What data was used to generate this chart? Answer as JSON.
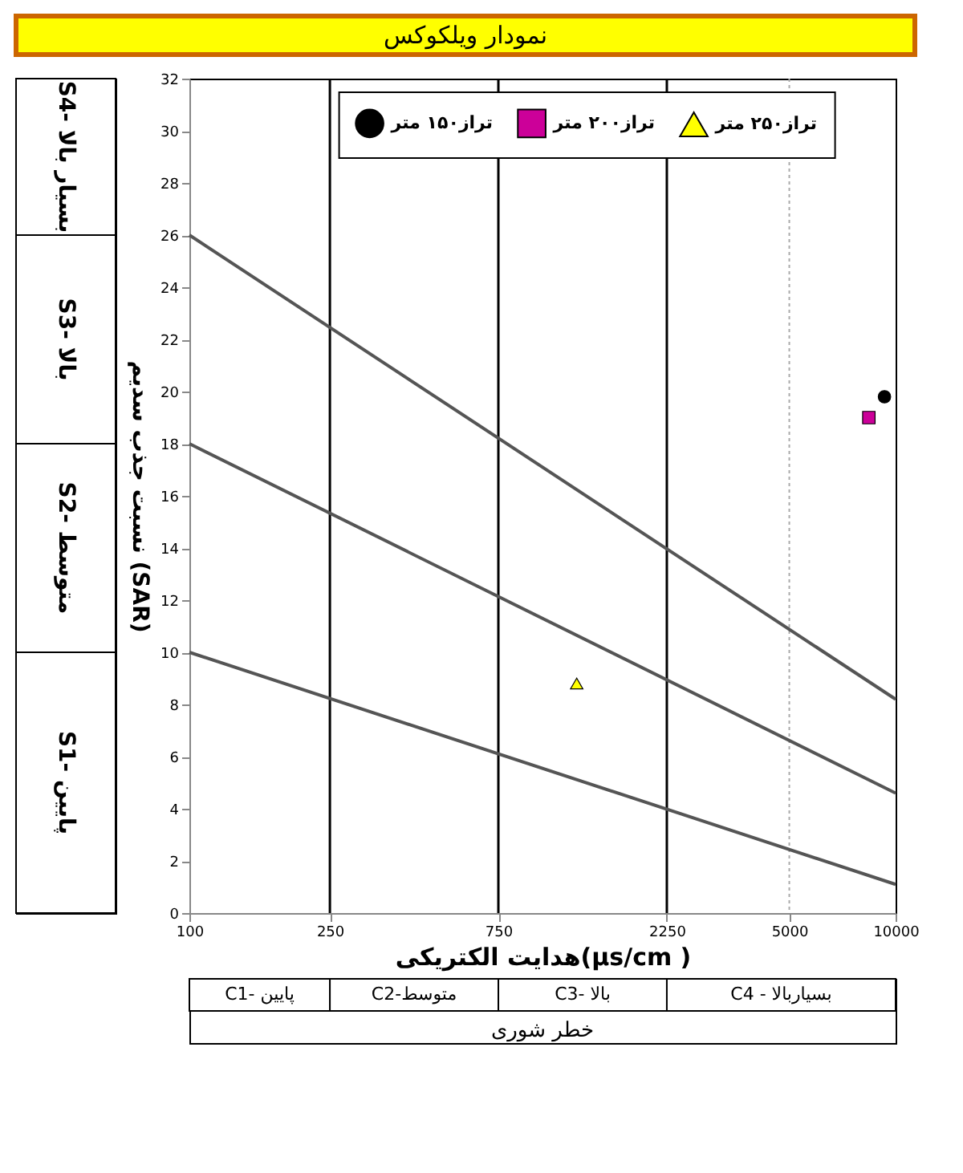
{
  "chart_data": {
    "type": "scatter",
    "title": "نمودار ویلکوکس",
    "xlabel": "هدایت الکتریکی(µs/cm )",
    "ylabel": "نسبت جذب سدیم (SAR)",
    "log": "x",
    "xlim": [
      100,
      10000
    ],
    "xticks": [
      100,
      250,
      750,
      2250,
      5000,
      10000
    ],
    "ylim": [
      0,
      32
    ],
    "yticks": [
      0,
      2,
      4,
      6,
      8,
      10,
      12,
      14,
      16,
      18,
      20,
      22,
      24,
      26,
      28,
      30,
      32
    ],
    "grid": false,
    "legend": "top right",
    "series": [
      {
        "type": "line",
        "color": "#555555",
        "x": [
          100,
          10000
        ],
        "values": [
          26,
          8.2
        ]
      },
      {
        "type": "line",
        "color": "#555555",
        "x": [
          100,
          10000
        ],
        "values": [
          18,
          4.6
        ]
      },
      {
        "type": "line",
        "color": "#555555",
        "x": [
          100,
          10000
        ],
        "values": [
          10,
          1.1
        ]
      },
      {
        "type": "scatter",
        "name": "تراز۱۵۰ متر",
        "color": "#000000",
        "marker": "circle",
        "x": [
          9300
        ],
        "values": [
          19.8
        ]
      },
      {
        "type": "scatter",
        "name": "تراز۲۰۰ متر",
        "color": "#cc0099",
        "marker": "square",
        "x": [
          8400
        ],
        "values": [
          19.0
        ]
      },
      {
        "type": "scatter",
        "name": "تراز۲۵۰ متر",
        "color": "#ffff00",
        "marker": "triangle",
        "x": [
          1250
        ],
        "values": [
          8.8
        ]
      }
    ],
    "ref_lines": [
      {
        "axis": "x",
        "value": 250,
        "color": "#000000",
        "line_style": "solid"
      },
      {
        "axis": "x",
        "value": 750,
        "color": "#000000",
        "line_style": "solid"
      },
      {
        "axis": "x",
        "value": 2250,
        "color": "#000000",
        "line_style": "solid"
      },
      {
        "axis": "x",
        "value": 5000,
        "color": "#aaaaaa",
        "line_style": "dotted"
      }
    ],
    "annotations": [
      "S4- بسیار بالا",
      "S3- بالا",
      "S2- متوسط",
      "S1- پایین",
      "C1- پایین",
      "C2-متوسط",
      "C3- بالا",
      "C4 - بسیاربالا",
      "خطر شوری"
    ]
  }
}
